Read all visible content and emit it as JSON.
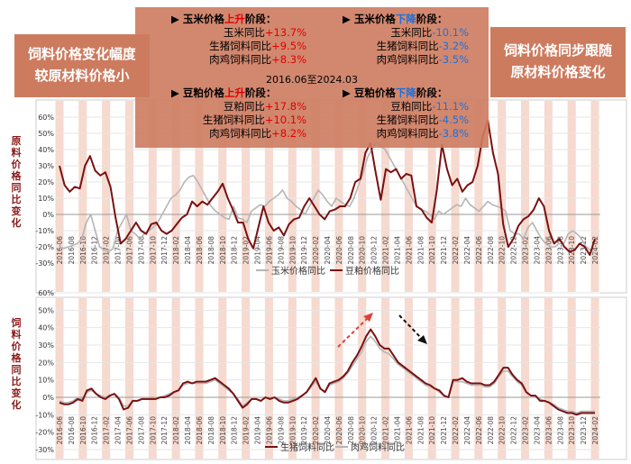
{
  "left_box": {
    "line1": "饲料价格变化幅度",
    "line2": "较原材料价格小"
  },
  "right_box": {
    "line1": "饲料价格同步跟随",
    "line2": "原材料价格变化"
  },
  "top_axis_label": "原料价格同比变化",
  "bottom_axis_label": "饲料价格同比变化",
  "annotations": {
    "period": "2016.06至2024.03",
    "corn_up": {
      "title_a": "玉米价格",
      "title_b": "上升",
      "title_c": "阶段：",
      "rows": [
        {
          "label": "玉米同比",
          "value": "+13.7%"
        },
        {
          "label": "生猪饲料同比",
          "value": "+9.5%"
        },
        {
          "label": "肉鸡饲料同比",
          "value": "+8.3%"
        }
      ]
    },
    "corn_down": {
      "title_a": "玉米价格",
      "title_b": "下降",
      "title_c": "阶段：",
      "rows": [
        {
          "label": "玉米同比",
          "value": "-10.1%"
        },
        {
          "label": "生猪饲料同比",
          "value": "-3.2%"
        },
        {
          "label": "肉鸡饲料同比",
          "value": "-3.5%"
        }
      ]
    },
    "meal_up": {
      "title_a": "豆粕价格",
      "title_b": "上升",
      "title_c": "阶段：",
      "rows": [
        {
          "label": "豆粕同比",
          "value": "+17.8%"
        },
        {
          "label": "生猪饲料同比",
          "value": "+10.1%"
        },
        {
          "label": "肉鸡饲料同比",
          "value": "+8.2%"
        }
      ]
    },
    "meal_down": {
      "title_a": "豆粕价格",
      "title_b": "下降",
      "title_c": "阶段：",
      "rows": [
        {
          "label": "豆粕同比",
          "value": "-11.1%"
        },
        {
          "label": "生猪饲料同比",
          "value": "-4.5%"
        },
        {
          "label": "肉鸡饲料同比",
          "value": "-3.8%"
        }
      ]
    }
  },
  "colors": {
    "dark_red": "#7a1010",
    "gray": "#b5b5b5",
    "band": "#f6d9cf",
    "box": "#cd7b5f",
    "arrow_red": "#e0403a",
    "arrow_black": "#111111"
  },
  "chart_data": [
    {
      "type": "line",
      "ylim": [
        -30,
        60
      ],
      "yticks": [
        "-30%",
        "-20%",
        "-10%",
        "0%",
        "10%",
        "20%",
        "30%",
        "40%",
        "50%",
        "60%"
      ],
      "x_tick_labels": [
        "2016-06",
        "2016-08",
        "2016-10",
        "2016-12",
        "2017-02",
        "2017-04",
        "2017-06",
        "2017-08",
        "2017-10",
        "2017-12",
        "2018-02",
        "2018-04",
        "2018-06",
        "2018-08",
        "2018-10",
        "2018-12",
        "2019-02",
        "2019-04",
        "2019-06",
        "2019-08",
        "2019-10",
        "2019-12",
        "2020-02",
        "2020-04",
        "2020-06",
        "2020-08",
        "2020-10",
        "2020-12",
        "2021-02",
        "2021-04",
        "2021-06",
        "2021-08",
        "2021-10",
        "2021-12",
        "2022-02",
        "2022-04",
        "2022-06",
        "2022-08",
        "2022-10",
        "2022-12",
        "2023-02",
        "2023-04",
        "2023-06",
        "2023-08",
        "2023-10",
        "2023-12",
        "2024-02"
      ],
      "series": [
        {
          "name": "玉米价格同比",
          "color": "#b5b5b5",
          "values": [
            -20,
            -21,
            -20,
            -19,
            -18,
            -15,
            -5,
            0,
            -10,
            -20,
            -22,
            -23,
            -21,
            -10,
            -5,
            0,
            -10,
            -12,
            -15,
            -12,
            -10,
            -8,
            -5,
            0,
            5,
            10,
            12,
            15,
            20,
            23,
            24,
            20,
            15,
            10,
            5,
            2,
            0,
            -2,
            -3,
            5,
            -2,
            -3,
            -5,
            2,
            4,
            6,
            5,
            8,
            10,
            12,
            15,
            10,
            8,
            5,
            3,
            0,
            5,
            10,
            15,
            12,
            8,
            5,
            10,
            8,
            6,
            5,
            10,
            18,
            25,
            35,
            40,
            45,
            42,
            40,
            35,
            30,
            25,
            20,
            15,
            10,
            5,
            3,
            2,
            0,
            -3,
            2,
            0,
            2,
            4,
            6,
            5,
            10,
            6,
            4,
            2,
            5,
            8,
            6,
            5,
            4,
            2,
            -10,
            -12,
            -12,
            -15,
            -8,
            -5,
            -10,
            -15,
            -18,
            -20,
            -20,
            -18,
            -18,
            -12,
            -10,
            -12,
            -15,
            -20,
            -22,
            -24
          ]
        },
        {
          "name": "豆粕价格同比",
          "color": "#7a1010",
          "values": [
            30,
            18,
            14,
            17,
            16,
            30,
            36,
            27,
            24,
            26,
            17,
            -2,
            -18,
            -15,
            -10,
            -5,
            -10,
            -12,
            -6,
            -5,
            -10,
            -12,
            -10,
            -6,
            -2,
            0,
            8,
            5,
            8,
            6,
            10,
            14,
            19,
            10,
            3,
            -5,
            -5,
            -15,
            -21,
            -8,
            5,
            -5,
            -10,
            -8,
            -13,
            -6,
            -3,
            -2,
            5,
            10,
            5,
            0,
            -3,
            2,
            3,
            5,
            5,
            10,
            20,
            22,
            38,
            44,
            26,
            9,
            28,
            26,
            28,
            22,
            25,
            24,
            5,
            3,
            -2,
            -5,
            15,
            43,
            28,
            18,
            22,
            14,
            18,
            20,
            30,
            48,
            58,
            38,
            25,
            -6,
            -20,
            -15,
            -7,
            -3,
            -1,
            3,
            10,
            5,
            -10,
            -18,
            -15,
            -20,
            -23,
            -22,
            -18,
            -20,
            -25,
            -15
          ]
        }
      ]
    },
    {
      "type": "line",
      "ylim": [
        -30,
        60
      ],
      "yticks": [
        "-30%",
        "-20%",
        "-10%",
        "0%",
        "10%",
        "20%",
        "30%",
        "40%",
        "50%",
        "60%"
      ],
      "x_tick_labels": [
        "2016-06",
        "2016-08",
        "2016-10",
        "2016-12",
        "2017-02",
        "2017-04",
        "2017-06",
        "2017-08",
        "2017-10",
        "2017-12",
        "2018-02",
        "2018-04",
        "2018-06",
        "2018-08",
        "2018-10",
        "2018-12",
        "2019-02",
        "2019-04",
        "2019-06",
        "2019-08",
        "2019-10",
        "2019-12",
        "2020-02",
        "2020-04",
        "2020-06",
        "2020-08",
        "2020-10",
        "2020-12",
        "2021-02",
        "2021-04",
        "2021-06",
        "2021-08",
        "2021-10",
        "2021-12",
        "2022-02",
        "2022-04",
        "2022-06",
        "2022-08",
        "2022-10",
        "2022-12",
        "2023-02",
        "2023-04",
        "2023-06",
        "2023-08",
        "2023-10",
        "2023-12",
        "2024-02"
      ],
      "series": [
        {
          "name": "生猪饲料同比",
          "color": "#7a1010",
          "values": [
            -3,
            -4,
            -4,
            -3,
            -1,
            -2,
            4,
            5,
            2,
            0,
            -1,
            1,
            2,
            -1,
            -7,
            -6,
            -2,
            -2,
            -1,
            -1,
            -1,
            -1,
            0,
            0,
            1,
            3,
            4,
            8,
            9,
            8,
            9,
            9,
            9,
            10,
            11,
            9,
            7,
            5,
            2,
            -2,
            -6,
            -4,
            -1,
            -1,
            -2,
            0,
            -1,
            0,
            -2,
            -3,
            -3,
            -2,
            -1,
            1,
            3,
            7,
            11,
            5,
            3,
            8,
            9,
            10,
            12,
            15,
            20,
            24,
            29,
            35,
            39,
            35,
            30,
            28,
            28,
            24,
            20,
            18,
            16,
            14,
            12,
            10,
            8,
            7,
            5,
            4,
            1,
            0,
            10,
            10,
            11,
            9,
            8,
            8,
            8,
            7,
            7,
            9,
            13,
            17,
            17,
            13,
            10,
            8,
            3,
            1,
            1,
            -2,
            -2,
            -3,
            -5,
            -7,
            -8,
            -9,
            -9,
            -10,
            -9,
            -9,
            -9,
            -9
          ]
        },
        {
          "name": "肉鸡饲料同比",
          "color": "#b5b5b5",
          "values": [
            -2,
            -3,
            -3,
            -2,
            0,
            -1,
            3,
            4,
            2,
            1,
            0,
            1,
            2,
            0,
            -5,
            -5,
            -2,
            -2,
            -1,
            -1,
            -1,
            0,
            0,
            1,
            2,
            3,
            4,
            7,
            8,
            8,
            8,
            8,
            8,
            9,
            10,
            8,
            6,
            4,
            2,
            -1,
            -5,
            -3,
            -1,
            -1,
            -2,
            0,
            -1,
            0,
            -1,
            -2,
            -2,
            -1,
            0,
            1,
            3,
            6,
            9,
            5,
            3,
            7,
            8,
            9,
            11,
            14,
            18,
            22,
            26,
            32,
            35,
            32,
            28,
            26,
            25,
            22,
            19,
            17,
            15,
            13,
            11,
            9,
            7,
            6,
            5,
            3,
            1,
            0,
            9,
            9,
            9,
            8,
            7,
            7,
            7,
            6,
            6,
            8,
            12,
            15,
            15,
            12,
            9,
            7,
            3,
            1,
            1,
            -1,
            -2,
            -3,
            -4,
            -6,
            -7,
            -8,
            -8,
            -9,
            -8,
            -8,
            -8,
            -8
          ]
        }
      ]
    }
  ]
}
